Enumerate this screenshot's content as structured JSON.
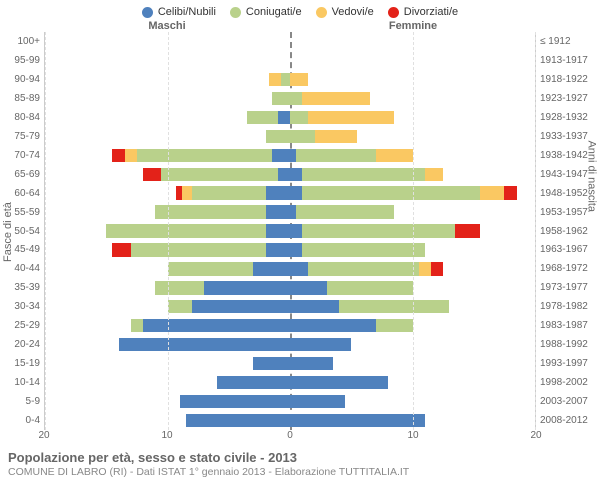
{
  "chart": {
    "type": "population-pyramid",
    "legend": [
      {
        "label": "Celibi/Nubili",
        "color": "#4f81bd"
      },
      {
        "label": "Coniugati/e",
        "color": "#b9d18b"
      },
      {
        "label": "Vedovi/e",
        "color": "#fac862"
      },
      {
        "label": "Divorziati/e",
        "color": "#e32219"
      }
    ],
    "header": {
      "male": "Maschi",
      "female": "Femmine"
    },
    "axis": {
      "y_left_label": "Fasce di età",
      "y_right_label": "Anni di nascita",
      "x_max": 20,
      "x_ticks": [
        20,
        10,
        0,
        10,
        20
      ]
    },
    "age_labels": [
      "100+",
      "95-99",
      "90-94",
      "85-89",
      "80-84",
      "75-79",
      "70-74",
      "65-69",
      "60-64",
      "55-59",
      "50-54",
      "45-49",
      "40-44",
      "35-39",
      "30-34",
      "25-29",
      "20-24",
      "15-19",
      "10-14",
      "5-9",
      "0-4"
    ],
    "birth_labels": [
      "≤ 1912",
      "1913-1917",
      "1918-1922",
      "1923-1927",
      "1928-1932",
      "1933-1937",
      "1938-1942",
      "1943-1947",
      "1948-1952",
      "1953-1957",
      "1958-1962",
      "1963-1967",
      "1968-1972",
      "1973-1977",
      "1978-1982",
      "1983-1987",
      "1988-1992",
      "1993-1997",
      "1998-2002",
      "2003-2007",
      "2008-2012"
    ],
    "rows": [
      {
        "m": {
          "c": 0,
          "co": 0,
          "v": 0,
          "d": 0
        },
        "f": {
          "c": 0,
          "co": 0,
          "v": 0,
          "d": 0
        }
      },
      {
        "m": {
          "c": 0,
          "co": 0,
          "v": 0,
          "d": 0
        },
        "f": {
          "c": 0,
          "co": 0,
          "v": 0,
          "d": 0
        }
      },
      {
        "m": {
          "c": 0,
          "co": 0.7,
          "v": 1,
          "d": 0
        },
        "f": {
          "c": 0,
          "co": 0,
          "v": 1.5,
          "d": 0
        }
      },
      {
        "m": {
          "c": 0,
          "co": 1.5,
          "v": 0,
          "d": 0
        },
        "f": {
          "c": 0,
          "co": 1,
          "v": 5.5,
          "d": 0
        }
      },
      {
        "m": {
          "c": 1,
          "co": 2.5,
          "v": 0,
          "d": 0
        },
        "f": {
          "c": 0,
          "co": 1.5,
          "v": 7,
          "d": 0
        }
      },
      {
        "m": {
          "c": 0,
          "co": 2,
          "v": 0,
          "d": 0
        },
        "f": {
          "c": 0,
          "co": 2,
          "v": 3.5,
          "d": 0
        }
      },
      {
        "m": {
          "c": 1.5,
          "co": 11,
          "v": 1,
          "d": 1
        },
        "f": {
          "c": 0.5,
          "co": 6.5,
          "v": 3,
          "d": 0
        }
      },
      {
        "m": {
          "c": 1,
          "co": 9.5,
          "v": 0,
          "d": 1.5
        },
        "f": {
          "c": 1,
          "co": 10,
          "v": 1.5,
          "d": 0
        }
      },
      {
        "m": {
          "c": 2,
          "co": 6,
          "v": 0.8,
          "d": 0.5
        },
        "f": {
          "c": 1,
          "co": 14.5,
          "v": 2,
          "d": 1
        }
      },
      {
        "m": {
          "c": 2,
          "co": 9,
          "v": 0,
          "d": 0
        },
        "f": {
          "c": 0.5,
          "co": 8,
          "v": 0,
          "d": 0
        }
      },
      {
        "m": {
          "c": 2,
          "co": 13,
          "v": 0,
          "d": 0
        },
        "f": {
          "c": 1,
          "co": 12.5,
          "v": 0,
          "d": 2
        }
      },
      {
        "m": {
          "c": 2,
          "co": 11,
          "v": 0,
          "d": 1.5
        },
        "f": {
          "c": 1,
          "co": 10,
          "v": 0,
          "d": 0
        }
      },
      {
        "m": {
          "c": 3,
          "co": 7,
          "v": 0,
          "d": 0
        },
        "f": {
          "c": 1.5,
          "co": 9,
          "v": 1,
          "d": 1
        }
      },
      {
        "m": {
          "c": 7,
          "co": 4,
          "v": 0,
          "d": 0
        },
        "f": {
          "c": 3,
          "co": 7,
          "v": 0,
          "d": 0
        }
      },
      {
        "m": {
          "c": 8,
          "co": 2,
          "v": 0,
          "d": 0
        },
        "f": {
          "c": 4,
          "co": 9,
          "v": 0,
          "d": 0
        }
      },
      {
        "m": {
          "c": 12,
          "co": 1,
          "v": 0,
          "d": 0
        },
        "f": {
          "c": 7,
          "co": 3,
          "v": 0,
          "d": 0
        }
      },
      {
        "m": {
          "c": 14,
          "co": 0,
          "v": 0,
          "d": 0
        },
        "f": {
          "c": 5,
          "co": 0,
          "v": 0,
          "d": 0
        }
      },
      {
        "m": {
          "c": 3,
          "co": 0,
          "v": 0,
          "d": 0
        },
        "f": {
          "c": 3.5,
          "co": 0,
          "v": 0,
          "d": 0
        }
      },
      {
        "m": {
          "c": 6,
          "co": 0,
          "v": 0,
          "d": 0
        },
        "f": {
          "c": 8,
          "co": 0,
          "v": 0,
          "d": 0
        }
      },
      {
        "m": {
          "c": 9,
          "co": 0,
          "v": 0,
          "d": 0
        },
        "f": {
          "c": 4.5,
          "co": 0,
          "v": 0,
          "d": 0
        }
      },
      {
        "m": {
          "c": 8.5,
          "co": 0,
          "v": 0,
          "d": 0
        },
        "f": {
          "c": 11,
          "co": 0,
          "v": 0,
          "d": 0
        }
      }
    ],
    "grid_color": "#e0e0e0",
    "background": "#ffffff"
  },
  "footer": {
    "title": "Popolazione per età, sesso e stato civile - 2013",
    "subtitle": "COMUNE DI LABRO (RI) - Dati ISTAT 1° gennaio 2013 - Elaborazione TUTTITALIA.IT"
  }
}
